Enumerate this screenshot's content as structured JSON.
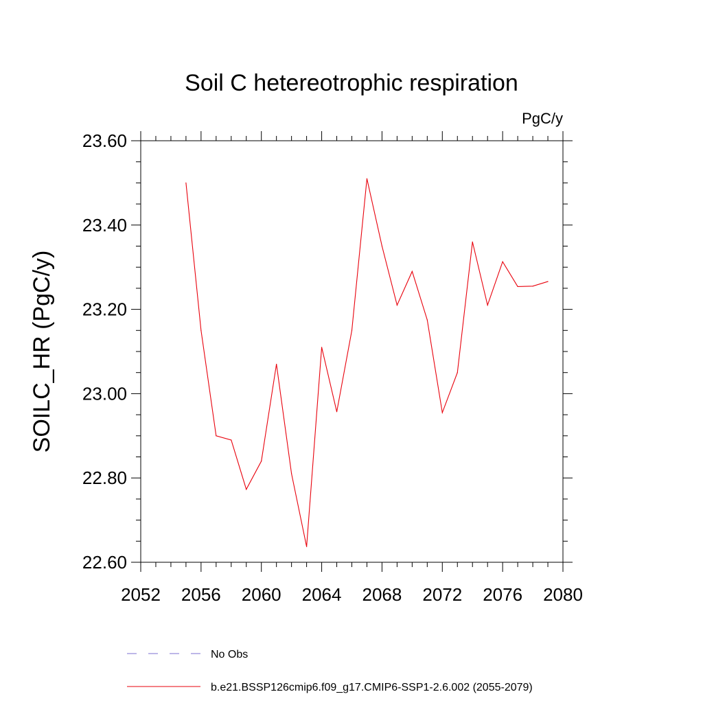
{
  "chart_data": {
    "type": "line",
    "title": "Soil C hetereotrophic respiration",
    "units_label": "PgC/y",
    "xlabel": "",
    "ylabel": "SOILC_HR  (PgC/y)",
    "xlim": [
      2052,
      2080
    ],
    "ylim": [
      22.6,
      23.6
    ],
    "x_ticks": [
      2052,
      2056,
      2060,
      2064,
      2068,
      2072,
      2076,
      2080
    ],
    "x_tick_labels": [
      "2052",
      "2056",
      "2060",
      "2064",
      "2068",
      "2072",
      "2076",
      "2080"
    ],
    "y_ticks": [
      22.6,
      22.8,
      23.0,
      23.2,
      23.4,
      23.6
    ],
    "y_tick_labels": [
      "22.60",
      "22.80",
      "23.00",
      "23.20",
      "23.40",
      "23.60"
    ],
    "grid": false,
    "legend_position": "bottom",
    "x": [
      2055,
      2056,
      2057,
      2058,
      2059,
      2060,
      2061,
      2062,
      2063,
      2064,
      2065,
      2066,
      2067,
      2068,
      2069,
      2070,
      2071,
      2072,
      2073,
      2074,
      2075,
      2076,
      2077,
      2078,
      2079
    ],
    "series": [
      {
        "name": "b.e21.BSSP126cmip6.f09_g17.CMIP6-SSP1-2.6.002 (2055-2079)",
        "color": "#e8000b",
        "dash": "solid",
        "values": [
          23.5,
          23.15,
          22.9,
          22.89,
          22.773,
          22.84,
          23.07,
          22.81,
          22.637,
          23.11,
          22.957,
          23.15,
          23.51,
          23.35,
          23.21,
          23.29,
          23.175,
          22.955,
          23.05,
          23.36,
          23.21,
          23.313,
          23.254,
          23.255,
          23.266
        ]
      }
    ],
    "legend": [
      {
        "label": "No Obs",
        "color": "#7b6fd0",
        "dash": "dashed"
      },
      {
        "label": "b.e21.BSSP126cmip6.f09_g17.CMIP6-SSP1-2.6.002 (2055-2079)",
        "color": "#e8000b",
        "dash": "solid"
      }
    ]
  }
}
